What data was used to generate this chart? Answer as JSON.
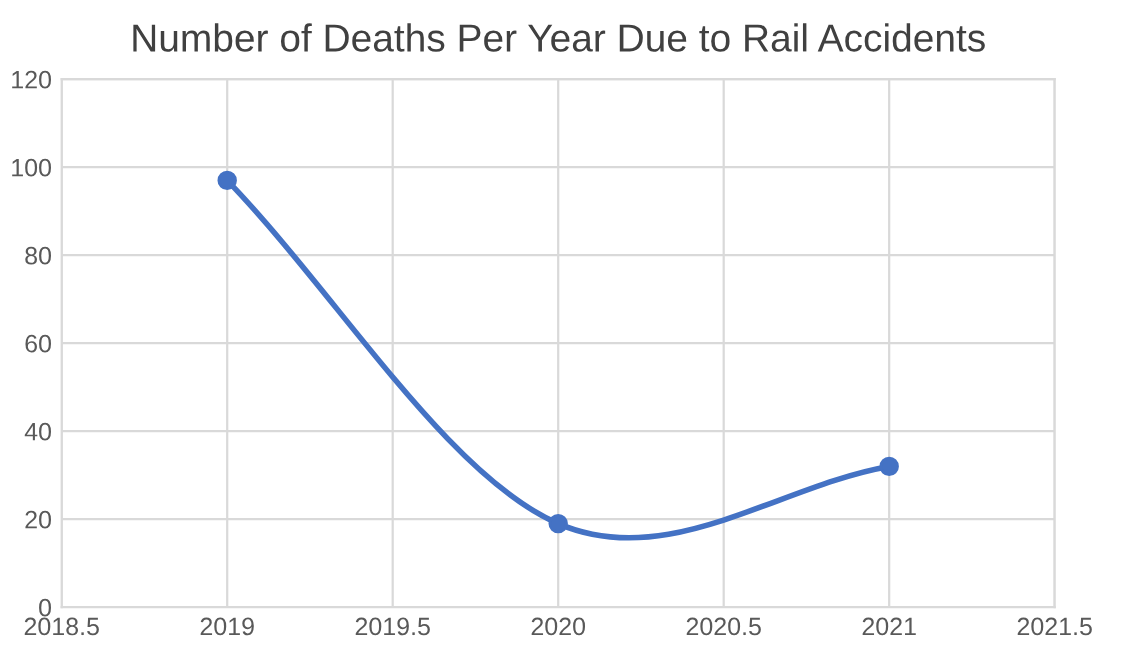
{
  "chart_data": {
    "type": "line",
    "title": "Number of Deaths Per Year Due to Rail Accidents",
    "x": [
      2019,
      2020,
      2021
    ],
    "series": [
      {
        "color": "#4472c4",
        "values": [
          97,
          19,
          32
        ]
      }
    ],
    "xlim": [
      2018.5,
      2021.5
    ],
    "xticks": [
      2018.5,
      2019,
      2019.5,
      2020,
      2020.5,
      2021,
      2021.5
    ],
    "ylim": [
      0,
      120
    ],
    "yticks": [
      0,
      20,
      40,
      60,
      80,
      100,
      120
    ],
    "grid": true,
    "marker": "circle",
    "line_style": "solid"
  }
}
